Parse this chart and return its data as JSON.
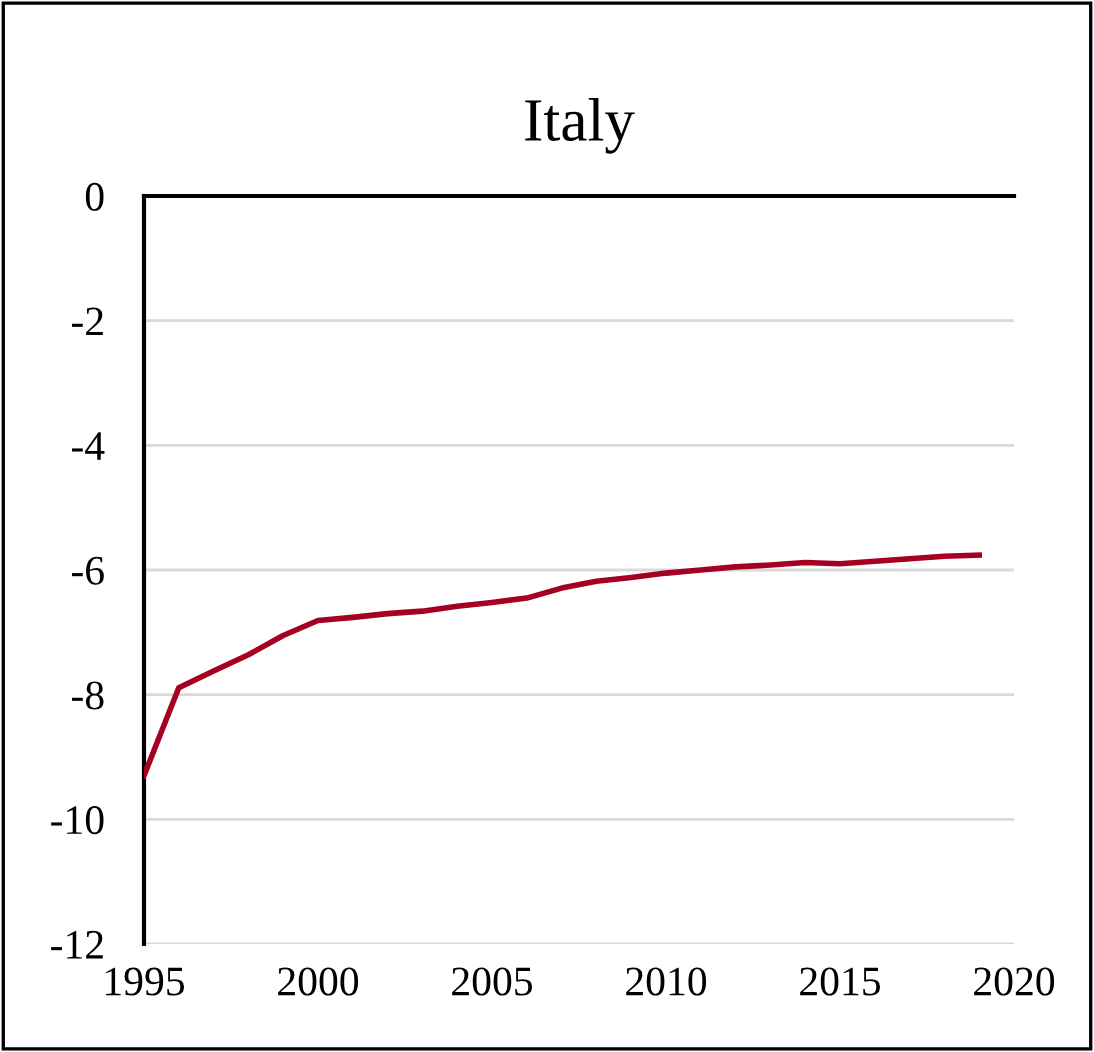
{
  "chart_data": {
    "type": "line",
    "title": "Italy",
    "x": [
      1995,
      1996,
      1997,
      1998,
      1999,
      2000,
      2001,
      2002,
      2003,
      2004,
      2005,
      2006,
      2007,
      2008,
      2009,
      2010,
      2011,
      2012,
      2013,
      2014,
      2015,
      2016,
      2017,
      2018,
      2019
    ],
    "series": [
      {
        "color": "#a50021",
        "values": [
          -9.3,
          -7.89,
          -7.62,
          -7.36,
          -7.05,
          -6.81,
          -6.76,
          -6.7,
          -6.66,
          -6.58,
          -6.52,
          -6.45,
          -6.29,
          -6.18,
          -6.12,
          -6.05,
          -6.0,
          -5.95,
          -5.92,
          -5.88,
          -5.9,
          -5.86,
          -5.82,
          -5.78,
          -5.76
        ]
      }
    ],
    "xlim": [
      1995,
      2020
    ],
    "xticks": [
      1995,
      2000,
      2005,
      2010,
      2015,
      2020
    ],
    "ylim": [
      -12,
      0
    ],
    "yticks": [
      -12,
      -10,
      -8,
      -6,
      -4,
      -2,
      0
    ],
    "grid": "y",
    "legend": false,
    "marker": "none",
    "line_style": "solid"
  }
}
